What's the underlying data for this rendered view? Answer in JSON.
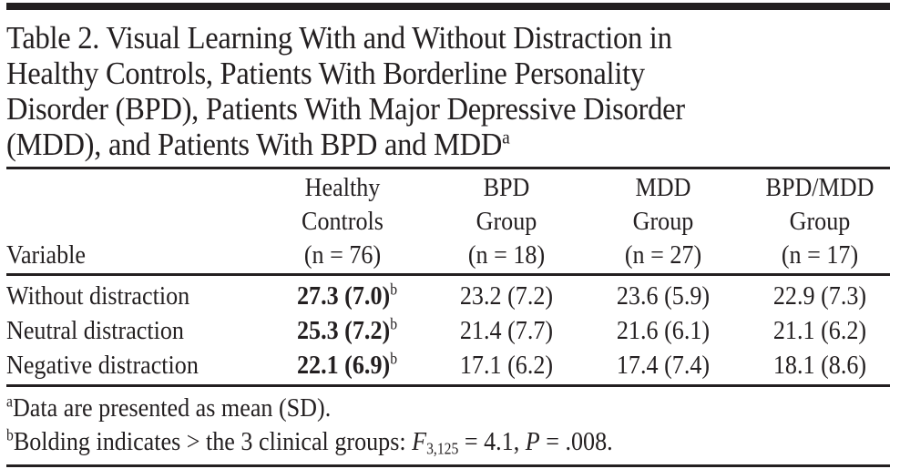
{
  "table": {
    "title_lines": [
      "Table 2. Visual Learning With and Without Distraction in",
      "Healthy Controls, Patients With Borderline Personality",
      "Disorder (BPD), Patients With Major Depressive Disorder",
      "(MDD), and Patients With BPD and MDD"
    ],
    "title_footnote_marker": "a",
    "variable_header": "Variable",
    "columns": [
      {
        "line1": "Healthy",
        "line2": "Controls",
        "n": "(n = 76)"
      },
      {
        "line1": "BPD",
        "line2": "Group",
        "n": "(n = 18)"
      },
      {
        "line1": "MDD",
        "line2": "Group",
        "n": "(n = 27)"
      },
      {
        "line1": "BPD/MDD",
        "line2": "Group",
        "n": "(n = 17)"
      }
    ],
    "rows": [
      {
        "variable": "Without distraction",
        "hc": "27.3 (7.0)",
        "hc_marker": "b",
        "bpd": "23.2 (7.2)",
        "mdd": "23.6 (5.9)",
        "bpd_mdd": "22.9 (7.3)"
      },
      {
        "variable": "Neutral distraction",
        "hc": "25.3 (7.2)",
        "hc_marker": "b",
        "bpd": "21.4 (7.7)",
        "mdd": "21.6 (6.1)",
        "bpd_mdd": "21.1 (6.2)"
      },
      {
        "variable": "Negative distraction",
        "hc": "22.1 (6.9)",
        "hc_marker": "b",
        "bpd": "17.1 (6.2)",
        "mdd": "17.4 (7.4)",
        "bpd_mdd": "18.1 (8.6)"
      }
    ],
    "footnotes": {
      "a": {
        "marker": "a",
        "text": "Data are presented as mean (SD)."
      },
      "b": {
        "marker": "b",
        "text_prefix": "Bolding indicates > the 3 clinical groups: ",
        "stat_symbol": "F",
        "stat_subscript": "3,125",
        "stat_value": " = 4.1, ",
        "p_symbol": "P",
        "p_value": " = .008."
      }
    }
  }
}
